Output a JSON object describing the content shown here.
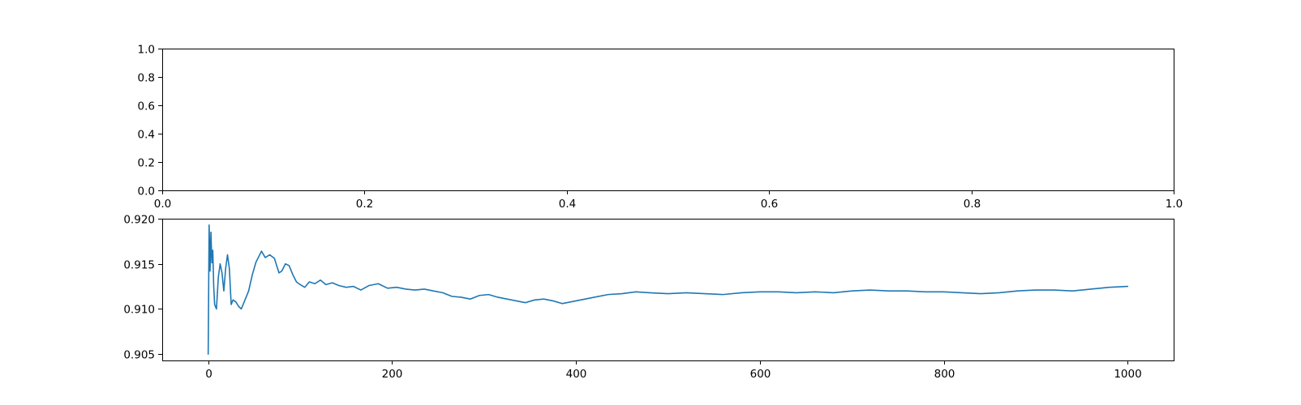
{
  "colors": {
    "background": "#ffffff",
    "axes": "#000000",
    "series_0": "#1f77b4"
  },
  "chart_data": [
    {
      "type": "line",
      "title": "",
      "xlabel": "",
      "ylabel": "",
      "xlim": [
        0.0,
        1.0
      ],
      "ylim": [
        0.0,
        1.0
      ],
      "xticks": [
        "0.0",
        "0.2",
        "0.4",
        "0.6",
        "0.8",
        "1.0"
      ],
      "yticks": [
        "0.0",
        "0.2",
        "0.4",
        "0.6",
        "0.8",
        "1.0"
      ],
      "grid": false,
      "legend": "none",
      "series": []
    },
    {
      "type": "line",
      "title": "",
      "xlabel": "",
      "ylabel": "",
      "xlim": [
        -50,
        1050
      ],
      "ylim": [
        0.9043,
        0.92
      ],
      "xticks": [
        "0",
        "200",
        "400",
        "600",
        "800",
        "1000"
      ],
      "yticks": [
        "0.905",
        "0.910",
        "0.915",
        "0.920"
      ],
      "grid": false,
      "legend": "none",
      "series": [
        {
          "color": "#1f77b4",
          "x": [
            0,
            1,
            2,
            3,
            4,
            5,
            6,
            7,
            9,
            11,
            13,
            15,
            17,
            19,
            21,
            23,
            25,
            27,
            30,
            33,
            36,
            40,
            44,
            48,
            52,
            55,
            58,
            62,
            67,
            72,
            77,
            80,
            84,
            88,
            92,
            96,
            100,
            105,
            110,
            116,
            122,
            128,
            135,
            142,
            150,
            158,
            166,
            175,
            185,
            195,
            205,
            215,
            225,
            235,
            245,
            255,
            265,
            275,
            285,
            295,
            305,
            315,
            325,
            335,
            345,
            355,
            365,
            375,
            385,
            395,
            405,
            420,
            435,
            450,
            465,
            480,
            500,
            520,
            540,
            560,
            580,
            600,
            620,
            640,
            660,
            680,
            700,
            720,
            740,
            760,
            780,
            800,
            820,
            840,
            860,
            880,
            900,
            920,
            940,
            960,
            980,
            1000
          ],
          "y": [
            0.905,
            0.9193,
            0.9142,
            0.9185,
            0.9151,
            0.9165,
            0.9125,
            0.9105,
            0.91,
            0.9135,
            0.915,
            0.914,
            0.912,
            0.9145,
            0.916,
            0.9145,
            0.9105,
            0.911,
            0.9108,
            0.9103,
            0.91,
            0.911,
            0.912,
            0.9138,
            0.9152,
            0.9158,
            0.9164,
            0.9157,
            0.916,
            0.9156,
            0.914,
            0.9142,
            0.915,
            0.9148,
            0.9138,
            0.913,
            0.9127,
            0.9124,
            0.913,
            0.9128,
            0.9132,
            0.9127,
            0.9129,
            0.9126,
            0.9124,
            0.9125,
            0.9121,
            0.9126,
            0.9128,
            0.9123,
            0.9124,
            0.9122,
            0.9121,
            0.9122,
            0.912,
            0.9118,
            0.9114,
            0.9113,
            0.9111,
            0.9115,
            0.9116,
            0.9113,
            0.9111,
            0.9109,
            0.9107,
            0.911,
            0.9111,
            0.9109,
            0.9106,
            0.9108,
            0.911,
            0.9113,
            0.9116,
            0.9117,
            0.9119,
            0.9118,
            0.9117,
            0.9118,
            0.9117,
            0.9116,
            0.9118,
            0.9119,
            0.9119,
            0.9118,
            0.9119,
            0.9118,
            0.912,
            0.9121,
            0.912,
            0.912,
            0.9119,
            0.9119,
            0.9118,
            0.9117,
            0.9118,
            0.912,
            0.9121,
            0.9121,
            0.912,
            0.9122,
            0.9124,
            0.9125
          ]
        }
      ]
    }
  ]
}
